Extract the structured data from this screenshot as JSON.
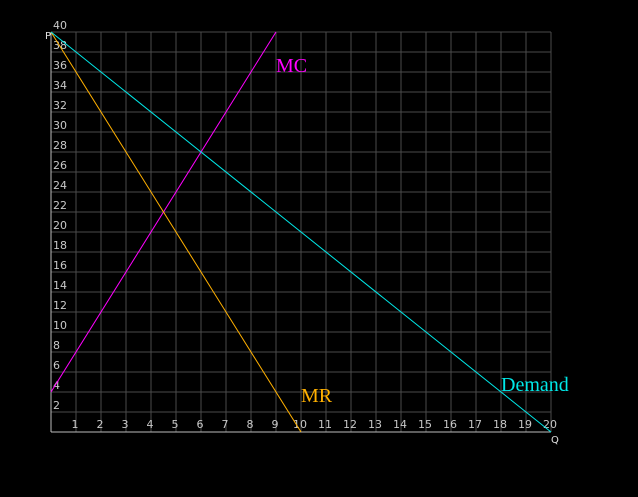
{
  "chart_data": {
    "type": "line",
    "x_label": "Q",
    "y_label": "P",
    "xlim": [
      0,
      20
    ],
    "ylim": [
      0,
      40
    ],
    "xticks": [
      1,
      2,
      3,
      4,
      5,
      6,
      7,
      8,
      9,
      10,
      11,
      12,
      13,
      14,
      15,
      16,
      17,
      18,
      19,
      20
    ],
    "yticks": [
      2,
      4,
      6,
      8,
      10,
      12,
      14,
      16,
      18,
      20,
      22,
      24,
      26,
      28,
      30,
      32,
      34,
      36,
      38,
      40
    ],
    "grid": true,
    "series": [
      {
        "name": "MC",
        "color": "#ff00ff",
        "x": [
          0,
          9
        ],
        "values": [
          4,
          40
        ]
      },
      {
        "name": "MR",
        "color": "#ffb000",
        "x": [
          0,
          10
        ],
        "values": [
          40,
          0
        ]
      },
      {
        "name": "Demand",
        "color": "#00e8e8",
        "x": [
          0,
          20
        ],
        "values": [
          40,
          0
        ]
      }
    ]
  }
}
